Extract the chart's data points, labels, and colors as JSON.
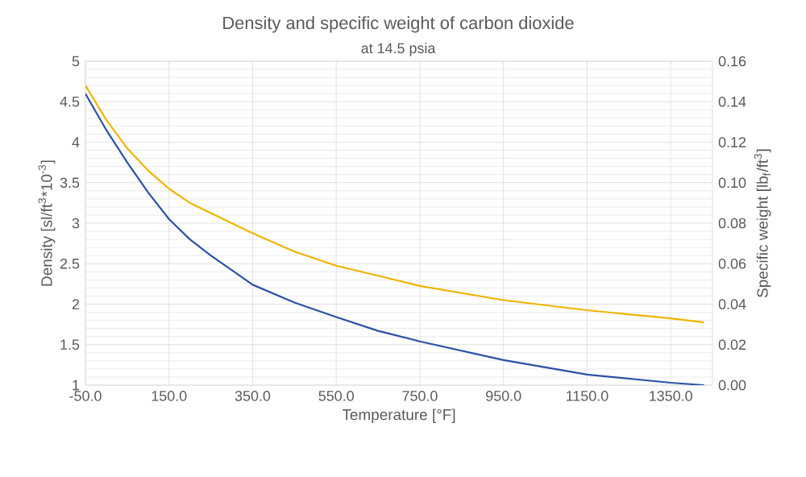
{
  "chart_data": {
    "type": "line",
    "title": "Density and specific weight of carbon dioxide",
    "subtitle": "at 14.5 psia",
    "xlabel": "Temperature [°F]",
    "ylabel": "Density [sl/ft$^{3}$*10$^{-3}$]",
    "y2label": "Specific weight [lb$_{f}$/ft$^{3}$]",
    "x": [
      -50,
      0,
      50,
      100,
      150,
      200,
      250,
      350,
      450,
      550,
      650,
      750,
      950,
      1150,
      1350,
      1430
    ],
    "series": [
      {
        "color": "#2a52a8",
        "values": [
          4.6,
          4.15,
          3.75,
          3.38,
          3.05,
          2.8,
          2.6,
          2.24,
          2.02,
          1.84,
          1.67,
          1.54,
          1.31,
          1.13,
          1.03,
          1.0
        ]
      },
      {
        "color": "#f0b400",
        "axis": "y2",
        "values": [
          0.148,
          0.131,
          0.117,
          0.106,
          0.097,
          0.09,
          0.085,
          0.075,
          0.066,
          0.059,
          0.054,
          0.049,
          0.042,
          0.037,
          0.033,
          0.031
        ]
      }
    ],
    "xlim": [
      -50,
      1450
    ],
    "xticks": [
      {
        "value": -50,
        "label": "-50.0"
      },
      {
        "value": 150,
        "label": "150.0"
      },
      {
        "value": 350,
        "label": "350.0"
      },
      {
        "value": 550,
        "label": "550.0"
      },
      {
        "value": 750,
        "label": "750.0"
      },
      {
        "value": 950,
        "label": "950.0"
      },
      {
        "value": 1150,
        "label": "1150.0"
      },
      {
        "value": 1350,
        "label": "1350.0"
      }
    ],
    "ylim": [
      1,
      5
    ],
    "yticks": [
      1,
      1.5,
      2,
      2.5,
      3,
      3.5,
      4,
      4.5,
      5
    ],
    "y2lim": [
      0,
      0.16
    ],
    "y2ticks": [
      {
        "value": 0,
        "label": "0.00"
      },
      {
        "value": 0.02,
        "label": "0.02"
      },
      {
        "value": 0.04,
        "label": "0.04"
      },
      {
        "value": 0.06,
        "label": "0.06"
      },
      {
        "value": 0.08,
        "label": "0.08"
      },
      {
        "value": 0.1,
        "label": "0.10"
      },
      {
        "value": 0.12,
        "label": "0.12"
      },
      {
        "value": 0.14,
        "label": "0.14"
      },
      {
        "value": 0.16,
        "label": "0.16"
      }
    ],
    "grid": true,
    "marker": "none",
    "line_style": "solid"
  }
}
